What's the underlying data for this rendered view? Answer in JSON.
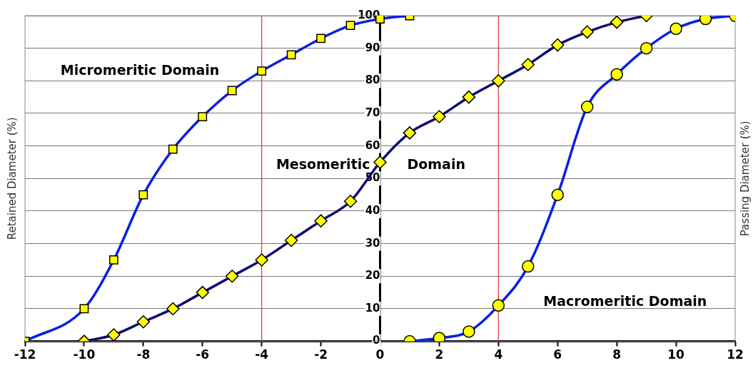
{
  "chart_data": {
    "type": "line",
    "ylabel": "Retained Diameter (%)",
    "y2label": "Passing Diameter (%)",
    "annotations": [
      "Micromeritic Domain",
      "Mesomeritic Domain",
      "Macromeritic Domain"
    ],
    "xlim": [
      -12,
      12
    ],
    "xticks": [
      -12,
      -10,
      -8,
      -6,
      -4,
      -2,
      0,
      2,
      4,
      6,
      8,
      10,
      12
    ],
    "ylim": [
      0,
      100
    ],
    "yticks": [
      0,
      10,
      20,
      30,
      40,
      50,
      60,
      70,
      80,
      90,
      100
    ],
    "grid": "y",
    "legend": false,
    "ref_lines": [
      {
        "axis": "x",
        "value": -4,
        "color": "#e03030"
      },
      {
        "axis": "x",
        "value": 4,
        "color": "#e03030"
      }
    ],
    "series": [
      {
        "color": "#0a1ee6",
        "marker": "square",
        "x": [
          -12,
          -10,
          -9,
          -8,
          -7,
          -6,
          -5,
          -4,
          -3,
          -2,
          -1,
          0,
          1
        ],
        "values": [
          0,
          10,
          25,
          45,
          59,
          69,
          77,
          83,
          88,
          93,
          97,
          99,
          100
        ]
      },
      {
        "color": "#0c0c70",
        "marker": "diamond",
        "x": [
          -10,
          -9,
          -8,
          -7,
          -6,
          -5,
          -4,
          -3,
          -2,
          -1,
          0,
          1,
          2,
          3,
          4,
          5,
          6,
          7,
          8,
          9
        ],
        "values": [
          0,
          2,
          6,
          10,
          15,
          20,
          25,
          31,
          37,
          43,
          55,
          64,
          69,
          75,
          80,
          85,
          91,
          95,
          98,
          100
        ]
      },
      {
        "color": "#0a1ee6",
        "marker": "circle",
        "x": [
          1,
          2,
          3,
          4,
          5,
          6,
          7,
          8,
          9,
          10,
          11,
          12
        ],
        "values": [
          0,
          1,
          3,
          11,
          23,
          45,
          72,
          82,
          90,
          96,
          99,
          100
        ]
      }
    ]
  }
}
